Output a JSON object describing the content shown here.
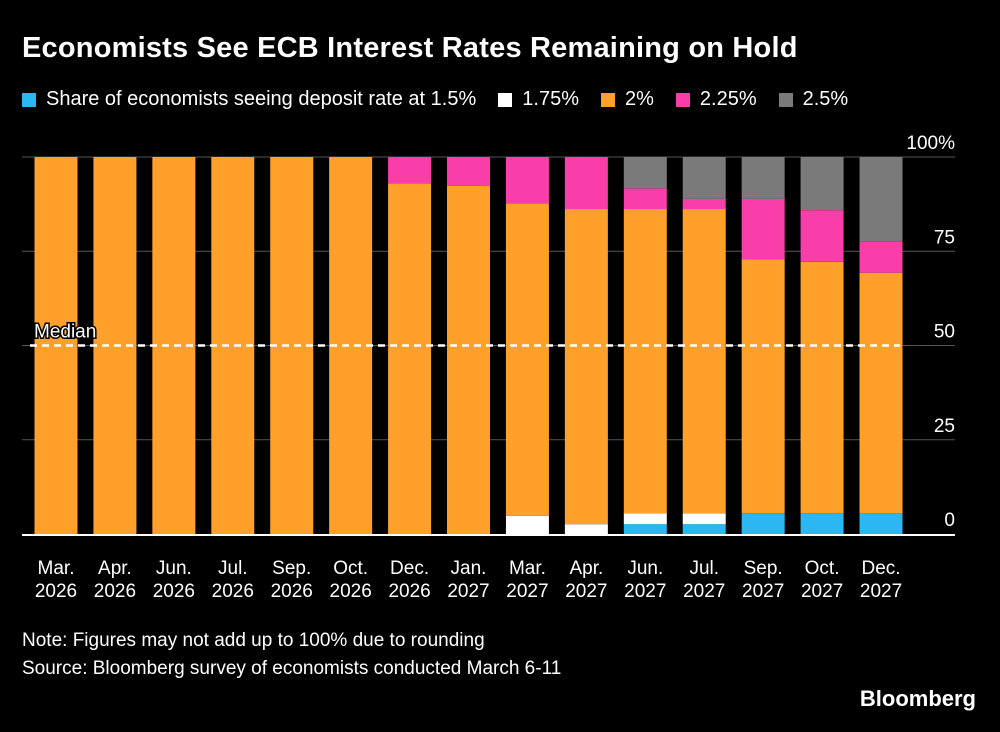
{
  "title": "Economists See ECB Interest Rates Remaining on Hold",
  "legend_prefix": "Share of economists seeing deposit rate at",
  "note": "Note: Figures may not add up to 100% due to rounding",
  "source": "Source: Bloomberg survey of economists conducted March 6-11",
  "brand": "Bloomberg",
  "chart_data": {
    "type": "bar",
    "stacked": true,
    "categories": [
      [
        "Mar.",
        "2026"
      ],
      [
        "Apr.",
        "2026"
      ],
      [
        "Jun.",
        "2026"
      ],
      [
        "Jul.",
        "2026"
      ],
      [
        "Sep.",
        "2026"
      ],
      [
        "Oct.",
        "2026"
      ],
      [
        "Dec.",
        "2026"
      ],
      [
        "Jan.",
        "2027"
      ],
      [
        "Mar.",
        "2027"
      ],
      [
        "Apr.",
        "2027"
      ],
      [
        "Jun.",
        "2027"
      ],
      [
        "Jul.",
        "2027"
      ],
      [
        "Sep.",
        "2027"
      ],
      [
        "Oct.",
        "2027"
      ],
      [
        "Dec.",
        "2027"
      ]
    ],
    "series": [
      {
        "name": "1.5%",
        "color": "#2bb8f2",
        "values": [
          0,
          0,
          0,
          0,
          0,
          0,
          0,
          0,
          0,
          0,
          2.6,
          2.6,
          5.5,
          5.5,
          5.5
        ]
      },
      {
        "name": "1.75%",
        "color": "#ffffff",
        "values": [
          0,
          0,
          0,
          0,
          0,
          0,
          0,
          0,
          4.8,
          2.6,
          2.9,
          2.9,
          0,
          0,
          0
        ]
      },
      {
        "name": "2%",
        "color": "#ffa02b",
        "values": [
          100,
          100,
          100,
          100,
          100,
          100,
          93,
          92.4,
          82.9,
          83.6,
          80.7,
          80.7,
          67.4,
          66.7,
          63.8
        ]
      },
      {
        "name": "2.25%",
        "color": "#f93da9",
        "values": [
          0,
          0,
          0,
          0,
          0,
          0,
          7,
          7.6,
          12.3,
          13.8,
          5.5,
          2.7,
          16,
          13.7,
          8.2
        ]
      },
      {
        "name": "2.5%",
        "color": "#7a7a7a",
        "values": [
          0,
          0,
          0,
          0,
          0,
          0,
          0,
          0,
          0,
          0,
          8.3,
          11.1,
          11.1,
          14.1,
          22.5
        ]
      }
    ],
    "ylim": [
      0,
      100
    ],
    "yticks": [
      "0",
      "25",
      "50",
      "75",
      "100%"
    ],
    "ytick_values": [
      0,
      25,
      50,
      75,
      100
    ],
    "y_axis_side": "right",
    "grid": true,
    "reference_line": {
      "label": "Median",
      "value": 50,
      "style": "dashed"
    },
    "legend_position": "top"
  }
}
